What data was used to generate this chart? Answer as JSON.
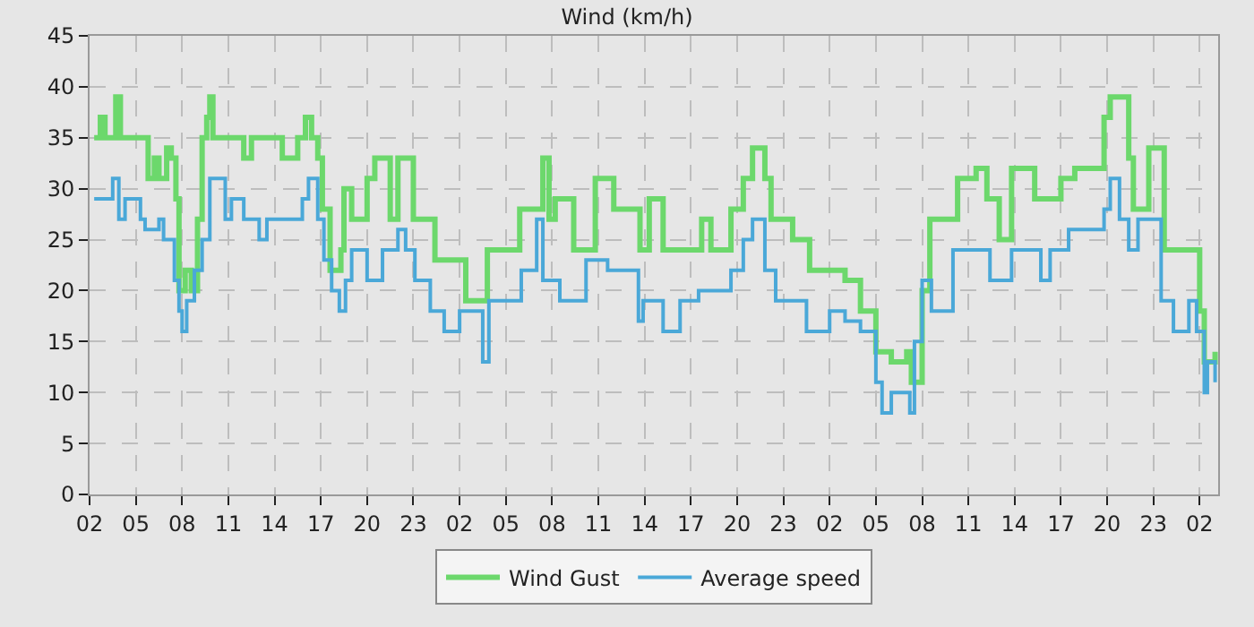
{
  "chart_data": {
    "type": "step",
    "title": "Wind (km/h)",
    "xlim": [
      "--01-01T02:00",
      "--01-04T03:12"
    ],
    "ylim": [
      0,
      45
    ],
    "xticks": [
      {
        "value": "--01-01T02:00",
        "label": "02"
      },
      {
        "value": "--01-01T05:00",
        "label": "05"
      },
      {
        "value": "--01-01T08:00",
        "label": "08"
      },
      {
        "value": "--01-01T11:00",
        "label": "11"
      },
      {
        "value": "--01-01T14:00",
        "label": "14"
      },
      {
        "value": "--01-01T17:00",
        "label": "17"
      },
      {
        "value": "--01-01T20:00",
        "label": "20"
      },
      {
        "value": "--01-01T23:00",
        "label": "23"
      },
      {
        "value": "--01-02T02:00",
        "label": "02"
      },
      {
        "value": "--01-02T05:00",
        "label": "05"
      },
      {
        "value": "--01-02T08:00",
        "label": "08"
      },
      {
        "value": "--01-02T11:00",
        "label": "11"
      },
      {
        "value": "--01-02T14:00",
        "label": "14"
      },
      {
        "value": "--01-02T17:00",
        "label": "17"
      },
      {
        "value": "--01-02T20:00",
        "label": "20"
      },
      {
        "value": "--01-02T23:00",
        "label": "23"
      },
      {
        "value": "--01-03T02:00",
        "label": "02"
      },
      {
        "value": "--01-03T05:00",
        "label": "05"
      },
      {
        "value": "--01-03T08:00",
        "label": "08"
      },
      {
        "value": "--01-03T11:00",
        "label": "11"
      },
      {
        "value": "--01-03T14:00",
        "label": "14"
      },
      {
        "value": "--01-03T17:00",
        "label": "17"
      },
      {
        "value": "--01-03T20:00",
        "label": "20"
      },
      {
        "value": "--01-03T23:00",
        "label": "23"
      },
      {
        "value": "--01-04T02:00",
        "label": "02"
      }
    ],
    "yticks": [
      0,
      5,
      10,
      15,
      20,
      25,
      30,
      35,
      40,
      45
    ],
    "grid": true,
    "legend": "bottom",
    "line_style": "solid",
    "series": [
      {
        "name": "Wind Gust",
        "color": "#6cd86c",
        "x": [
          "--01-01T02:18",
          "--01-01T02:42",
          "--01-01T03:00",
          "--01-01T03:42",
          "--01-01T04:00",
          "--01-01T05:30",
          "--01-01T05:48",
          "--01-01T06:12",
          "--01-01T06:30",
          "--01-01T07:00",
          "--01-01T07:18",
          "--01-01T07:36",
          "--01-01T07:48",
          "--01-01T08:12",
          "--01-01T08:36",
          "--01-01T09:00",
          "--01-01T09:18",
          "--01-01T09:36",
          "--01-01T09:48",
          "--01-01T10:00",
          "--01-01T11:00",
          "--01-01T12:00",
          "--01-01T12:30",
          "--01-01T13:30",
          "--01-01T14:30",
          "--01-01T15:30",
          "--01-01T16:00",
          "--01-01T16:24",
          "--01-01T16:48",
          "--01-01T17:06",
          "--01-01T17:36",
          "--01-01T18:18",
          "--01-01T18:30",
          "--01-01T19:00",
          "--01-01T20:00",
          "--01-01T20:30",
          "--01-01T21:30",
          "--01-01T22:00",
          "--01-01T23:00",
          "--01-02T00:24",
          "--01-02T02:24",
          "--01-02T03:48",
          "--01-02T05:54",
          "--01-02T07:24",
          "--01-02T07:48",
          "--01-02T08:12",
          "--01-02T09:24",
          "--01-02T10:48",
          "--01-02T12:00",
          "--01-02T13:42",
          "--01-02T14:18",
          "--01-02T15:12",
          "--01-02T17:42",
          "--01-02T18:18",
          "--01-02T19:36",
          "--01-02T20:24",
          "--01-02T21:00",
          "--01-02T21:48",
          "--01-02T22:12",
          "--01-02T23:36",
          "--01-03T00:42",
          "--01-03T03:00",
          "--01-03T04:00",
          "--01-03T05:00",
          "--01-03T06:00",
          "--01-03T07:00",
          "--01-03T07:18",
          "--01-03T08:00",
          "--01-03T08:30",
          "--01-03T10:18",
          "--01-03T11:30",
          "--01-03T12:12",
          "--01-03T13:00",
          "--01-03T13:48",
          "--01-03T15:18",
          "--01-03T17:00",
          "--01-03T17:54",
          "--01-03T19:48",
          "--01-03T20:12",
          "--01-03T21:24",
          "--01-03T21:42",
          "--01-03T22:42",
          "--01-03T23:42",
          "--01-04T01:24",
          "--01-04T02:00",
          "--01-04T02:18",
          "--01-04T03:00"
        ],
        "values": [
          35,
          37,
          35,
          39,
          35,
          35,
          31,
          33,
          31,
          34,
          33,
          29,
          20,
          22,
          20,
          27,
          35,
          37,
          39,
          35,
          35,
          33,
          35,
          35,
          33,
          35,
          37,
          35,
          33,
          28,
          22,
          24,
          30,
          27,
          31,
          33,
          27,
          33,
          27,
          23,
          19,
          24,
          28,
          33,
          27,
          29,
          24,
          31,
          28,
          24,
          29,
          24,
          27,
          24,
          28,
          31,
          34,
          31,
          27,
          25,
          22,
          21,
          18,
          14,
          13,
          14,
          11,
          20,
          27,
          31,
          32,
          29,
          25,
          32,
          29,
          31,
          32,
          37,
          39,
          33,
          28,
          34,
          24,
          24,
          18,
          13,
          14
        ]
      },
      {
        "name": "Average speed",
        "color": "#4aa8d8",
        "x": [
          "--01-01T02:18",
          "--01-01T03:30",
          "--01-01T03:54",
          "--01-01T04:18",
          "--01-01T05:18",
          "--01-01T05:36",
          "--01-01T06:30",
          "--01-01T06:48",
          "--01-01T07:30",
          "--01-01T07:48",
          "--01-01T08:00",
          "--01-01T08:18",
          "--01-01T08:48",
          "--01-01T09:18",
          "--01-01T09:48",
          "--01-01T10:48",
          "--01-01T11:12",
          "--01-01T12:00",
          "--01-01T13:00",
          "--01-01T13:30",
          "--01-01T15:30",
          "--01-01T15:48",
          "--01-01T16:12",
          "--01-01T16:48",
          "--01-01T17:12",
          "--01-01T17:42",
          "--01-01T18:12",
          "--01-01T18:36",
          "--01-01T19:00",
          "--01-01T20:00",
          "--01-01T21:00",
          "--01-01T22:00",
          "--01-01T22:30",
          "--01-01T23:06",
          "--01-02T00:06",
          "--01-02T01:00",
          "--01-02T02:00",
          "--01-02T03:30",
          "--01-02T03:54",
          "--01-02T06:00",
          "--01-02T07:00",
          "--01-02T07:24",
          "--01-02T08:30",
          "--01-02T10:12",
          "--01-02T11:36",
          "--01-02T13:36",
          "--01-02T13:54",
          "--01-02T15:12",
          "--01-02T16:18",
          "--01-02T17:30",
          "--01-02T19:36",
          "--01-02T20:24",
          "--01-02T21:00",
          "--01-02T21:48",
          "--01-02T22:30",
          "--01-03T00:30",
          "--01-03T02:00",
          "--01-03T03:00",
          "--01-03T04:00",
          "--01-03T05:00",
          "--01-03T05:24",
          "--01-03T06:00",
          "--01-03T07:12",
          "--01-03T07:30",
          "--01-03T08:00",
          "--01-03T08:36",
          "--01-03T10:00",
          "--01-03T12:24",
          "--01-03T13:48",
          "--01-03T15:42",
          "--01-03T16:18",
          "--01-03T17:30",
          "--01-03T19:48",
          "--01-03T20:12",
          "--01-03T20:48",
          "--01-03T21:24",
          "--01-03T22:00",
          "--01-03T23:30",
          "--01-04T00:18",
          "--01-04T01:18",
          "--01-04T01:48",
          "--01-04T02:18",
          "--01-04T02:30",
          "--01-04T03:00"
        ],
        "values": [
          29,
          31,
          27,
          29,
          27,
          26,
          27,
          25,
          21,
          18,
          16,
          19,
          22,
          25,
          31,
          27,
          29,
          27,
          25,
          27,
          27,
          29,
          31,
          27,
          23,
          20,
          18,
          21,
          24,
          21,
          24,
          26,
          24,
          21,
          18,
          16,
          18,
          13,
          19,
          22,
          27,
          21,
          19,
          23,
          22,
          17,
          19,
          16,
          19,
          20,
          22,
          25,
          27,
          22,
          19,
          16,
          18,
          17,
          16,
          11,
          8,
          10,
          8,
          15,
          21,
          18,
          24,
          21,
          24,
          21,
          24,
          26,
          28,
          31,
          27,
          24,
          27,
          19,
          16,
          19,
          16,
          10,
          13,
          11
        ]
      }
    ]
  }
}
